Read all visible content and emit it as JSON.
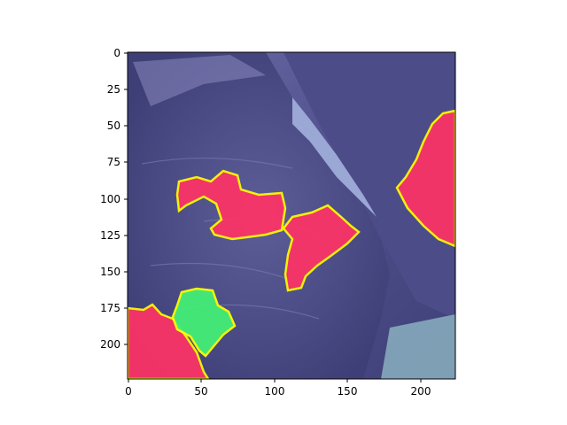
{
  "axes": {
    "x_ticks": [
      "0",
      "50",
      "100",
      "150",
      "200"
    ],
    "y_ticks": [
      "0",
      "25",
      "50",
      "75",
      "100",
      "125",
      "150",
      "175",
      "200"
    ],
    "x_range": [
      0,
      224
    ],
    "y_range": [
      224,
      0
    ]
  },
  "image": {
    "description_free": true,
    "regions": [
      {
        "id": "red-1",
        "color": "#ff3366"
      },
      {
        "id": "red-2",
        "color": "#ff3366"
      },
      {
        "id": "red-3",
        "color": "#ff3366"
      },
      {
        "id": "red-4",
        "color": "#ff3366"
      },
      {
        "id": "green-1",
        "color": "#44ee77"
      }
    ],
    "outline_color": "#ffff00"
  },
  "colors": {
    "tissue_dark": "#3f3f78",
    "tissue_mid": "#5a5a95",
    "tissue_light": "#8a8ac0",
    "highlight_blue": "#a9b7e3",
    "red_overlay": "#ff3366",
    "green_overlay": "#44ee77",
    "outline": "#ffff00"
  }
}
